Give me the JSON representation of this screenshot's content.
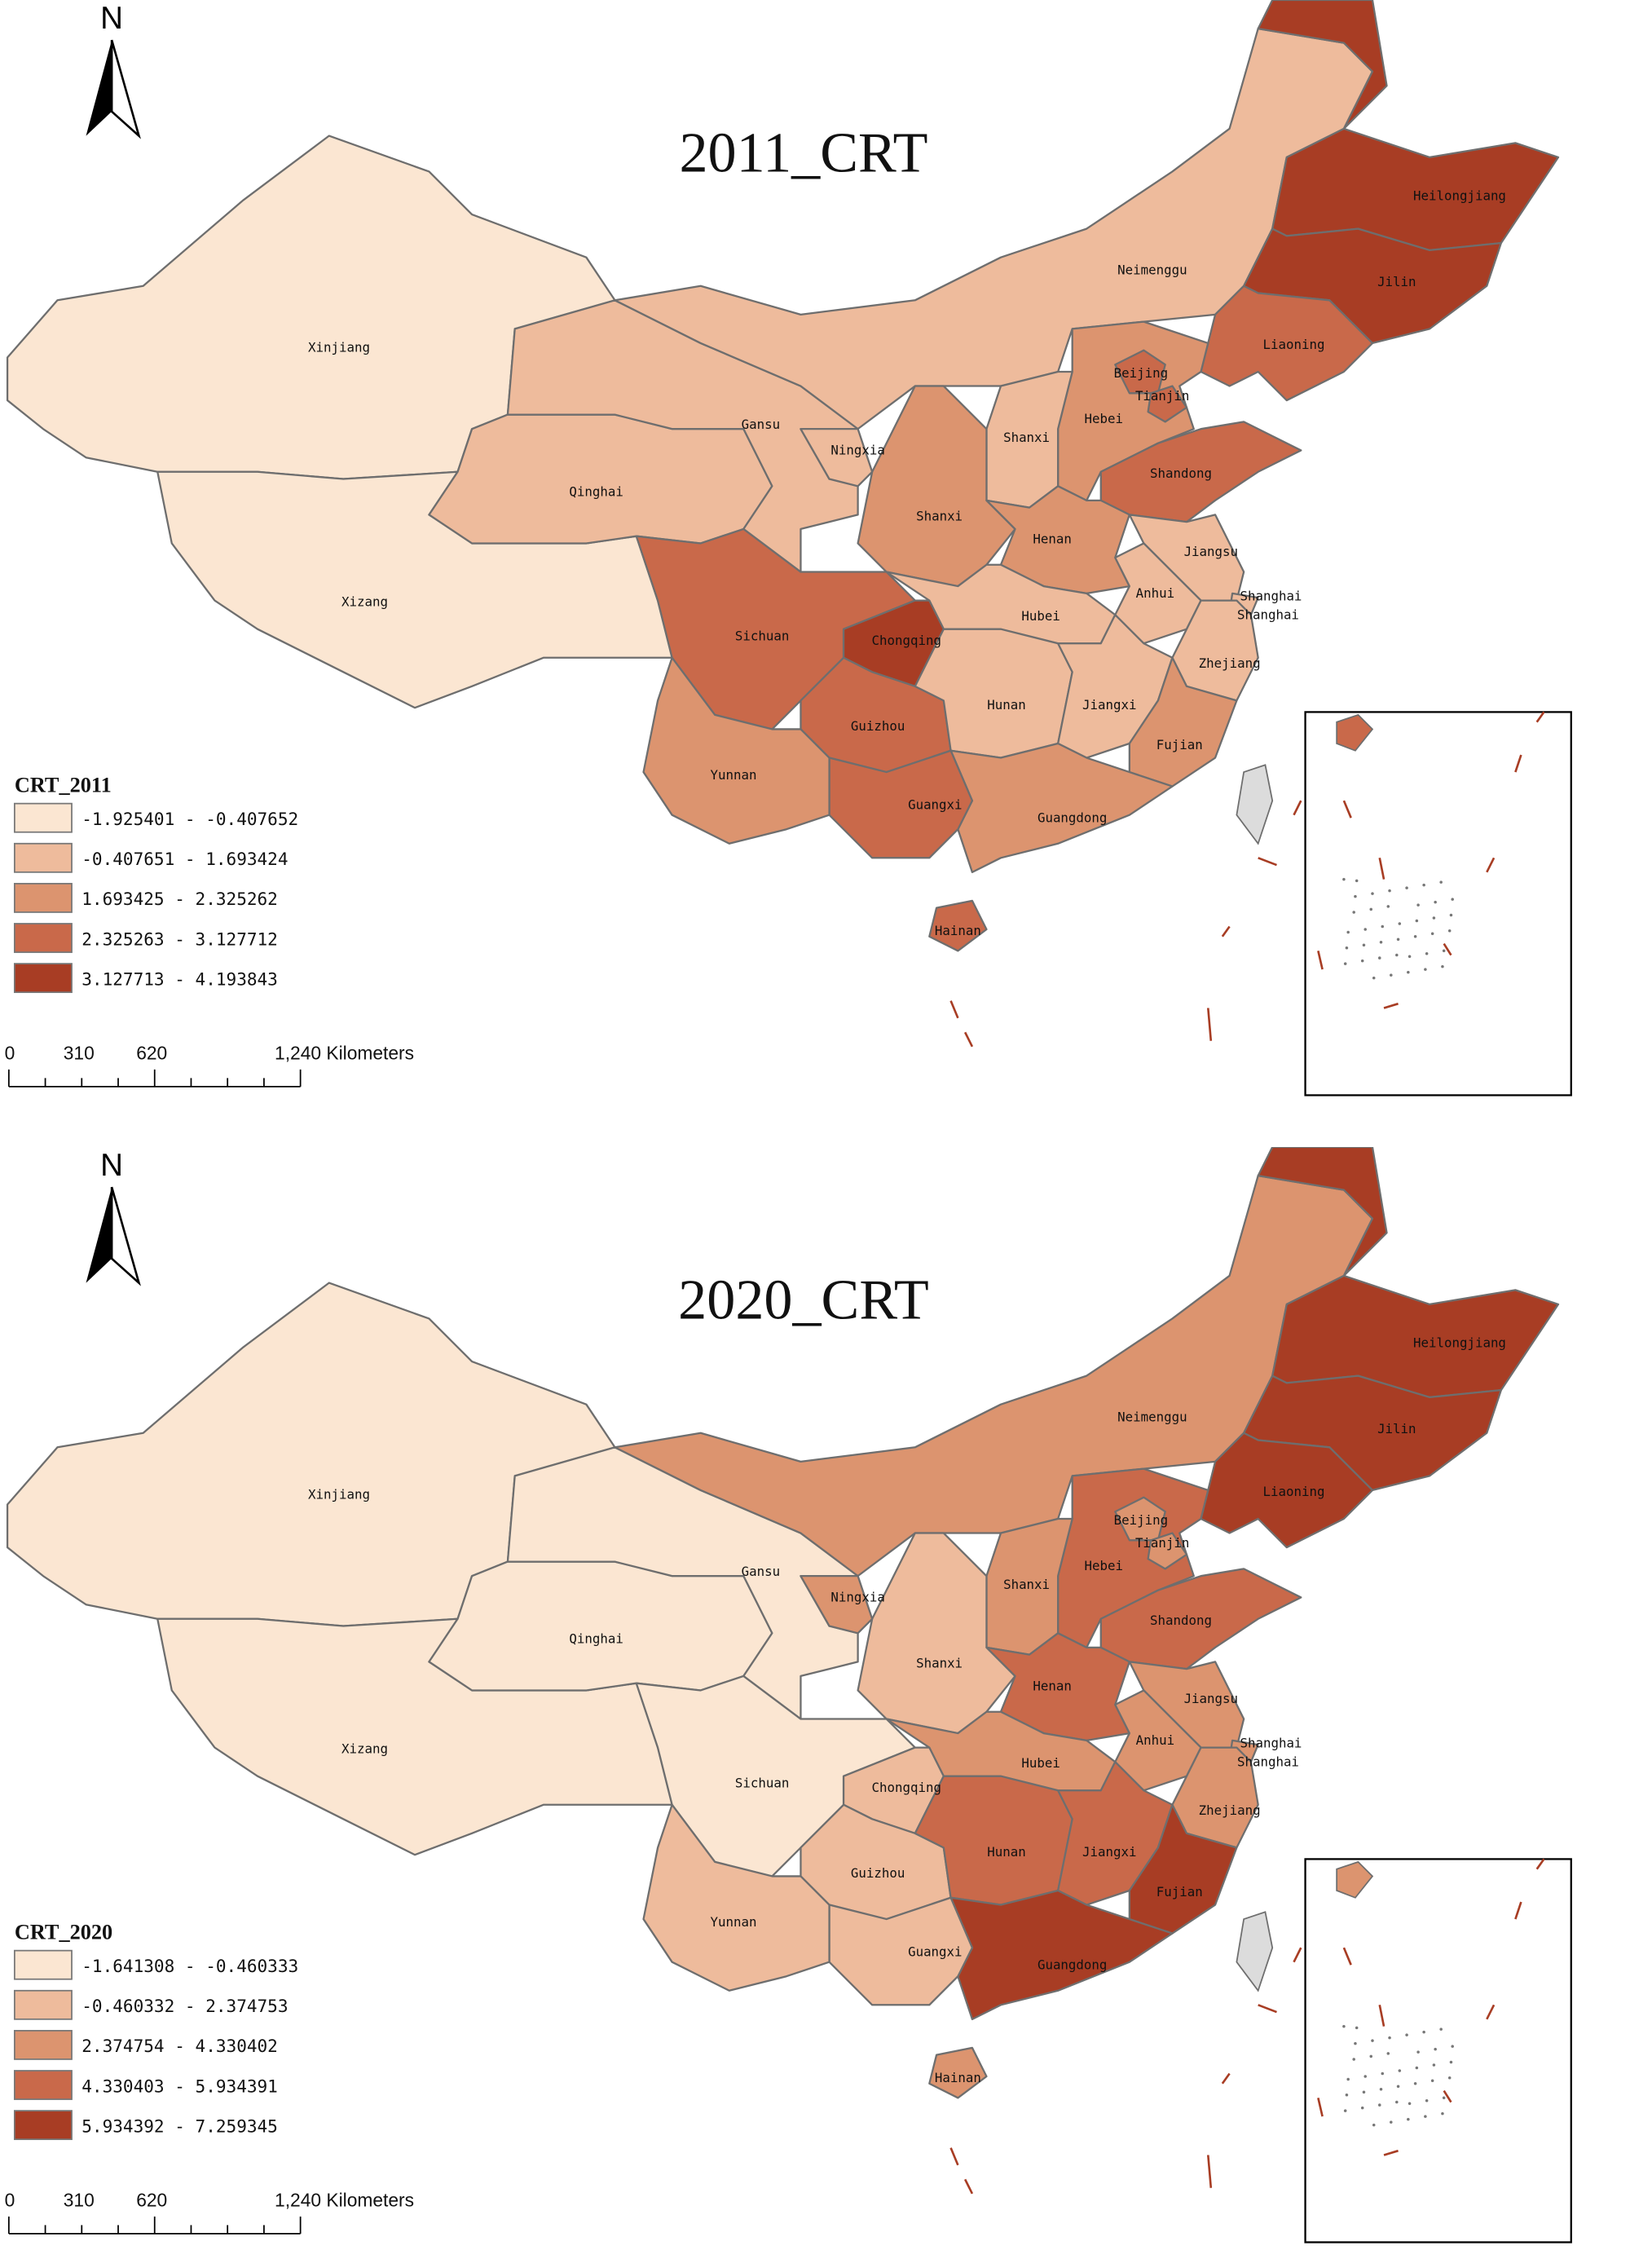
{
  "north_label": "N",
  "scale_bar": {
    "ticks": [
      "0",
      "310",
      "620",
      "1,240 Kilometers"
    ]
  },
  "colors": {
    "class_1": "#fbe6d2",
    "class_2": "#eebb9c",
    "class_3": "#dc946f",
    "class_4": "#c9694a",
    "class_5": "#a83d24",
    "border": "#6e6e6e",
    "taiwan": "#dcdcdc"
  },
  "maps": [
    {
      "title": "2011_CRT",
      "legend_title": "CRT_2011",
      "legend": [
        "-1.925401 - -0.407652",
        "-0.407651 - 1.693424",
        "1.693425 - 2.325262",
        "2.325263 - 3.127712",
        "3.127713 - 4.193843"
      ],
      "year_key": "c2011"
    },
    {
      "title": "2020_CRT",
      "legend_title": "CRT_2020",
      "legend": [
        "-1.641308 - -0.460333",
        "-0.460332 - 2.374753",
        "2.374754 - 4.330402",
        "4.330403 - 5.934391",
        "5.934392 - 7.259345"
      ],
      "year_key": "c2020"
    }
  ],
  "provinces": [
    {
      "id": "xinjiang",
      "label": "Xinjiang",
      "c2011": 1,
      "c2020": 1
    },
    {
      "id": "xizang",
      "label": "Xizang",
      "c2011": 1,
      "c2020": 1
    },
    {
      "id": "qinghai",
      "label": "Qinghai",
      "c2011": 2,
      "c2020": 1
    },
    {
      "id": "gansu",
      "label": "Gansu",
      "c2011": 2,
      "c2020": 1
    },
    {
      "id": "neimenggu",
      "label": "Neimenggu",
      "c2011": 2,
      "c2020": 3
    },
    {
      "id": "heilongjiang",
      "label": "Heilongjiang",
      "c2011": 5,
      "c2020": 5
    },
    {
      "id": "jilin",
      "label": "Jilin",
      "c2011": 5,
      "c2020": 5
    },
    {
      "id": "liaoning",
      "label": "Liaoning",
      "c2011": 4,
      "c2020": 5
    },
    {
      "id": "hebei",
      "label": "Hebei",
      "c2011": 3,
      "c2020": 4
    },
    {
      "id": "beijing",
      "label": "Beijing",
      "c2011": 4,
      "c2020": 3
    },
    {
      "id": "tianjin",
      "label": "Tianjin",
      "c2011": 4,
      "c2020": 3
    },
    {
      "id": "shanxi",
      "label": "Shanxi",
      "c2011": 2,
      "c2020": 3
    },
    {
      "id": "shaanxi",
      "label": "Shanxi",
      "c2011": 3,
      "c2020": 2
    },
    {
      "id": "ningxia",
      "label": "Ningxia",
      "c2011": 2,
      "c2020": 3
    },
    {
      "id": "shandong",
      "label": "Shandong",
      "c2011": 4,
      "c2020": 4
    },
    {
      "id": "henan",
      "label": "Henan",
      "c2011": 3,
      "c2020": 4
    },
    {
      "id": "jiangsu",
      "label": "Jiangsu",
      "c2011": 2,
      "c2020": 3
    },
    {
      "id": "anhui",
      "label": "Anhui",
      "c2011": 2,
      "c2020": 3
    },
    {
      "id": "shanghai",
      "label": "Shanghai",
      "label2": "Shanghai",
      "c2011": 2,
      "c2020": 3
    },
    {
      "id": "zhejiang",
      "label": "Zhejiang",
      "c2011": 2,
      "c2020": 3
    },
    {
      "id": "hubei",
      "label": "Hubei",
      "c2011": 2,
      "c2020": 3
    },
    {
      "id": "sichuan",
      "label": "Sichuan",
      "c2011": 4,
      "c2020": 1
    },
    {
      "id": "chongqing",
      "label": "Chongqing",
      "c2011": 5,
      "c2020": 2
    },
    {
      "id": "guizhou",
      "label": "Guizhou",
      "c2011": 4,
      "c2020": 2
    },
    {
      "id": "hunan",
      "label": "Hunan",
      "c2011": 2,
      "c2020": 4
    },
    {
      "id": "jiangxi",
      "label": "Jiangxi",
      "c2011": 2,
      "c2020": 4
    },
    {
      "id": "fujian",
      "label": "Fujian",
      "c2011": 3,
      "c2020": 5
    },
    {
      "id": "guangdong",
      "label": "Guangdong",
      "c2011": 3,
      "c2020": 5
    },
    {
      "id": "guangxi",
      "label": "Guangxi",
      "c2011": 4,
      "c2020": 2
    },
    {
      "id": "yunnan",
      "label": "Yunnan",
      "c2011": 3,
      "c2020": 2
    },
    {
      "id": "hainan",
      "label": "Hainan",
      "c2011": 4,
      "c2020": 3
    }
  ]
}
